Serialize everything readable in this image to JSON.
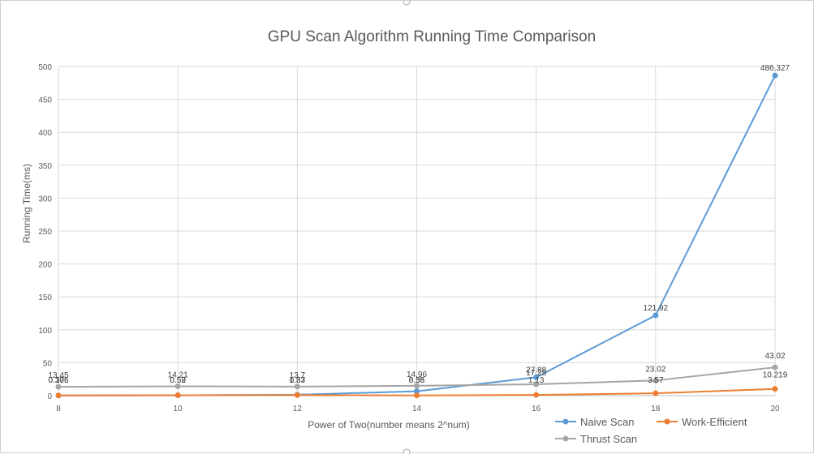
{
  "chart_data": {
    "type": "line",
    "title": "GPU Scan Algorithm Running Time Comparison",
    "xlabel": "Power of Two(number means 2^num)",
    "ylabel": "Running Time(ms)",
    "x": [
      8,
      10,
      12,
      14,
      16,
      18,
      20
    ],
    "x_ticks": [
      "8",
      "10",
      "12",
      "14",
      "16",
      "18",
      "20"
    ],
    "ylim": [
      0,
      500
    ],
    "y_ticks": [
      "0",
      "50",
      "100",
      "150",
      "200",
      "250",
      "300",
      "350",
      "400",
      "450",
      "500"
    ],
    "grid": true,
    "legend_position": "bottom-right",
    "series": [
      {
        "name": "Naive Scan",
        "color": "#5b9bd5",
        "values": [
          0.105,
          0.52,
          1.37,
          6.58,
          27.88,
          121.92,
          486.327
        ],
        "labels": [
          "0.105",
          "0.52",
          "1.37",
          "6.58",
          "27.88",
          "121.92",
          "486.327"
        ]
      },
      {
        "name": "Work-Efficient",
        "color": "#ed7d31",
        "values": [
          0.376,
          0.59,
          0.83,
          0.35,
          1.13,
          3.57,
          10.219
        ],
        "labels": [
          "0.376",
          "0.59",
          "0.83",
          "0.35",
          "1.13",
          "3.57",
          "10.219"
        ]
      },
      {
        "name": "Thrust Scan",
        "color": "#a5a5a5",
        "values": [
          13.45,
          14.21,
          13.7,
          14.96,
          17.25,
          23.02,
          43.02
        ],
        "labels": [
          "13.45",
          "14.21",
          "13.7",
          "14.96",
          "17.25",
          "23.02",
          "43.02"
        ]
      }
    ]
  }
}
